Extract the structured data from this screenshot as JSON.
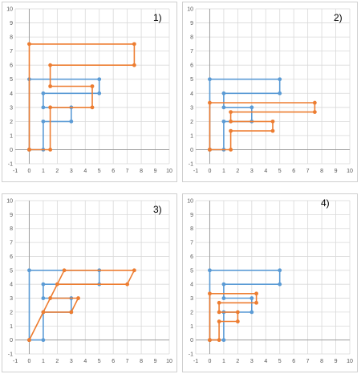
{
  "colors": {
    "blue": "#5b9bd5",
    "orange": "#ed7d31",
    "grid": "#d9d9d9",
    "axis": "#9e9e9e"
  },
  "chart_data": [
    {
      "type": "scatter",
      "panel_label": "1)",
      "xlim": [
        -1,
        10
      ],
      "ylim": [
        -1,
        10
      ],
      "grid": true,
      "xticks": [
        "-1",
        "0",
        "1",
        "2",
        "3",
        "4",
        "5",
        "6",
        "7",
        "8",
        "9",
        "10"
      ],
      "yticks": [
        "-1",
        "0",
        "1",
        "2",
        "3",
        "4",
        "5",
        "6",
        "7",
        "8",
        "9",
        "10"
      ],
      "series": [
        {
          "color": "#5b9bd5",
          "points": [
            [
              0,
              0
            ],
            [
              0,
              5
            ],
            [
              5,
              5
            ],
            [
              5,
              4
            ],
            [
              1,
              4
            ],
            [
              1,
              3
            ],
            [
              3,
              3
            ],
            [
              3,
              2
            ],
            [
              1,
              2
            ],
            [
              1,
              0
            ],
            [
              0,
              0
            ]
          ]
        },
        {
          "color": "#ed7d31",
          "points": [
            [
              0,
              0
            ],
            [
              0,
              7.5
            ],
            [
              7.5,
              7.5
            ],
            [
              7.5,
              6
            ],
            [
              1.5,
              6
            ],
            [
              1.5,
              4.5
            ],
            [
              4.5,
              4.5
            ],
            [
              4.5,
              3
            ],
            [
              1.5,
              3
            ],
            [
              1.5,
              0
            ],
            [
              0,
              0
            ]
          ]
        }
      ]
    },
    {
      "type": "scatter",
      "panel_label": "2)",
      "xlim": [
        -1,
        10
      ],
      "ylim": [
        -1,
        10
      ],
      "grid": true,
      "xticks": [
        "-1",
        "0",
        "1",
        "2",
        "3",
        "4",
        "5",
        "6",
        "7",
        "8",
        "9",
        "10"
      ],
      "yticks": [
        "-1",
        "0",
        "1",
        "2",
        "3",
        "4",
        "5",
        "6",
        "7",
        "8",
        "9",
        "10"
      ],
      "series": [
        {
          "color": "#5b9bd5",
          "points": [
            [
              0,
              0
            ],
            [
              0,
              5
            ],
            [
              5,
              5
            ],
            [
              5,
              4
            ],
            [
              1,
              4
            ],
            [
              1,
              3
            ],
            [
              3,
              3
            ],
            [
              3,
              2
            ],
            [
              1,
              2
            ],
            [
              1,
              0
            ],
            [
              0,
              0
            ]
          ]
        },
        {
          "color": "#ed7d31",
          "points": [
            [
              0,
              0
            ],
            [
              0,
              3.33
            ],
            [
              7.5,
              3.33
            ],
            [
              7.5,
              2.67
            ],
            [
              1.5,
              2.67
            ],
            [
              1.5,
              2
            ],
            [
              4.5,
              2
            ],
            [
              4.5,
              1.33
            ],
            [
              1.5,
              1.33
            ],
            [
              1.5,
              0
            ],
            [
              0,
              0
            ]
          ]
        }
      ]
    },
    {
      "type": "scatter",
      "panel_label": "3)",
      "xlim": [
        -1,
        10
      ],
      "ylim": [
        -1,
        10
      ],
      "grid": true,
      "xticks": [
        "-1",
        "0",
        "1",
        "2",
        "3",
        "4",
        "5",
        "6",
        "7",
        "8",
        "9",
        "10"
      ],
      "yticks": [
        "-1",
        "0",
        "1",
        "2",
        "3",
        "4",
        "5",
        "6",
        "7",
        "8",
        "9",
        "10"
      ],
      "series": [
        {
          "color": "#5b9bd5",
          "points": [
            [
              0,
              0
            ],
            [
              0,
              5
            ],
            [
              5,
              5
            ],
            [
              5,
              4
            ],
            [
              1,
              4
            ],
            [
              1,
              3
            ],
            [
              3,
              3
            ],
            [
              3,
              2
            ],
            [
              1,
              2
            ],
            [
              1,
              0
            ],
            [
              0,
              0
            ]
          ]
        },
        {
          "color": "#ed7d31",
          "points": [
            [
              0,
              0
            ],
            [
              2.5,
              5
            ],
            [
              7.5,
              5
            ],
            [
              7,
              4
            ],
            [
              2,
              4
            ],
            [
              1.5,
              3
            ],
            [
              3.5,
              3
            ],
            [
              3,
              2
            ],
            [
              1,
              2
            ],
            [
              0,
              0
            ]
          ]
        }
      ]
    },
    {
      "type": "scatter",
      "panel_label": "4)",
      "xlim": [
        -1,
        10
      ],
      "ylim": [
        -1,
        10
      ],
      "grid": true,
      "xticks": [
        "-1",
        "0",
        "1",
        "2",
        "3",
        "4",
        "5",
        "6",
        "7",
        "8",
        "9",
        "10"
      ],
      "yticks": [
        "-1",
        "0",
        "1",
        "2",
        "3",
        "4",
        "5",
        "6",
        "7",
        "8",
        "9",
        "10"
      ],
      "series": [
        {
          "color": "#5b9bd5",
          "points": [
            [
              0,
              0
            ],
            [
              0,
              5
            ],
            [
              5,
              5
            ],
            [
              5,
              4
            ],
            [
              1,
              4
            ],
            [
              1,
              3
            ],
            [
              3,
              3
            ],
            [
              3,
              2
            ],
            [
              1,
              2
            ],
            [
              1,
              0
            ],
            [
              0,
              0
            ]
          ]
        },
        {
          "color": "#ed7d31",
          "points": [
            [
              0,
              0
            ],
            [
              0,
              3.33
            ],
            [
              3.33,
              3.33
            ],
            [
              3.33,
              2.67
            ],
            [
              0.67,
              2.67
            ],
            [
              0.67,
              2
            ],
            [
              2,
              2
            ],
            [
              2,
              1.33
            ],
            [
              0.67,
              1.33
            ],
            [
              0.67,
              0
            ],
            [
              0,
              0
            ]
          ]
        }
      ]
    }
  ]
}
